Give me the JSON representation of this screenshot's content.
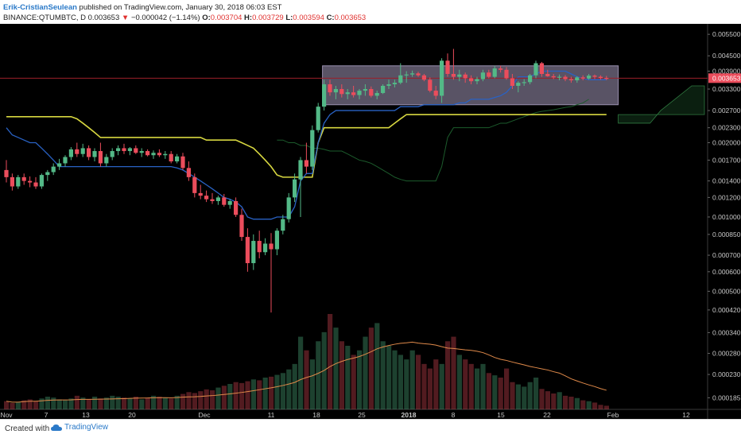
{
  "header": {
    "author": "Erik-CristianSeulean",
    "published_text": " published on TradingView.com, January 30, 2018 06:03 EST",
    "symbol": "BINANCE:QTUMBTC, D",
    "last": "0.003653",
    "change_arrow": "▼",
    "change": "−0.000042 (−1.14%)",
    "o_label": "O:",
    "o": "0.003704",
    "h_label": "H:",
    "h": "0.003729",
    "l_label": "L:",
    "l": "0.003594",
    "c_label": "C:",
    "c": "0.003653"
  },
  "footer": {
    "created_with": "Created with",
    "brand": "TradingView",
    "brand_icon": "tradingview-cloud-icon"
  },
  "colors": {
    "background": "#000000",
    "up": "#53b987",
    "down": "#eb4d5c",
    "conversion_line": "#2962c4",
    "base_line": "#d7d740",
    "lagging_span": "#1c5b2c",
    "volume_ma": "#e08a4a",
    "highlight_box": "#c5b7e0",
    "price_line": "#9b1f2a",
    "axis_text": "#c8c8c8",
    "price_label_bg": "#eb4d5c"
  },
  "chart_data": {
    "type": "candlestick",
    "y_scale": "log",
    "ylim": [
      0.00016,
      0.0058
    ],
    "price_axis_ticks": [
      "0.005500",
      "0.004500",
      "0.003900",
      "0.003300",
      "0.002700",
      "0.002300",
      "0.002000",
      "0.001700",
      "0.001400",
      "0.001200",
      "0.001000",
      "0.000850",
      "0.000700",
      "0.000600",
      "0.000500",
      "0.000420",
      "0.000340",
      "0.000280",
      "0.000230",
      "0.000185"
    ],
    "x_axis_ticks": [
      "Nov",
      "7",
      "13",
      "20",
      "Dec",
      "11",
      "18",
      "25",
      "2018",
      "8",
      "15",
      "22",
      "Feb",
      "12"
    ],
    "current_price_label": "0.003653",
    "candles": [
      {
        "o": 0.00155,
        "h": 0.0017,
        "l": 0.00138,
        "c": 0.00145
      },
      {
        "o": 0.00145,
        "h": 0.0015,
        "l": 0.00128,
        "c": 0.00133
      },
      {
        "o": 0.00133,
        "h": 0.00148,
        "l": 0.0013,
        "c": 0.00145
      },
      {
        "o": 0.00145,
        "h": 0.0015,
        "l": 0.00135,
        "c": 0.0014
      },
      {
        "o": 0.0014,
        "h": 0.00146,
        "l": 0.00132,
        "c": 0.00138
      },
      {
        "o": 0.00138,
        "h": 0.00145,
        "l": 0.0013,
        "c": 0.00133
      },
      {
        "o": 0.00133,
        "h": 0.0015,
        "l": 0.0013,
        "c": 0.00148
      },
      {
        "o": 0.00148,
        "h": 0.00155,
        "l": 0.0014,
        "c": 0.00152
      },
      {
        "o": 0.00152,
        "h": 0.00165,
        "l": 0.00148,
        "c": 0.0016
      },
      {
        "o": 0.0016,
        "h": 0.00172,
        "l": 0.00155,
        "c": 0.00165
      },
      {
        "o": 0.00165,
        "h": 0.00178,
        "l": 0.0016,
        "c": 0.00175
      },
      {
        "o": 0.00175,
        "h": 0.00192,
        "l": 0.0017,
        "c": 0.00188
      },
      {
        "o": 0.00188,
        "h": 0.002,
        "l": 0.00175,
        "c": 0.0018
      },
      {
        "o": 0.0018,
        "h": 0.00198,
        "l": 0.00175,
        "c": 0.0019
      },
      {
        "o": 0.0019,
        "h": 0.00195,
        "l": 0.0017,
        "c": 0.00175
      },
      {
        "o": 0.00175,
        "h": 0.0019,
        "l": 0.00168,
        "c": 0.00185
      },
      {
        "o": 0.00185,
        "h": 0.002,
        "l": 0.0016,
        "c": 0.00165
      },
      {
        "o": 0.00165,
        "h": 0.0018,
        "l": 0.0016,
        "c": 0.00175
      },
      {
        "o": 0.00175,
        "h": 0.0019,
        "l": 0.0017,
        "c": 0.00185
      },
      {
        "o": 0.00185,
        "h": 0.00195,
        "l": 0.00178,
        "c": 0.0019
      },
      {
        "o": 0.0019,
        "h": 0.00198,
        "l": 0.0018,
        "c": 0.00185
      },
      {
        "o": 0.00185,
        "h": 0.00192,
        "l": 0.00178,
        "c": 0.0019
      },
      {
        "o": 0.0019,
        "h": 0.00195,
        "l": 0.0018,
        "c": 0.00182
      },
      {
        "o": 0.00182,
        "h": 0.0019,
        "l": 0.00175,
        "c": 0.00185
      },
      {
        "o": 0.00185,
        "h": 0.00188,
        "l": 0.00176,
        "c": 0.00178
      },
      {
        "o": 0.00178,
        "h": 0.00186,
        "l": 0.00172,
        "c": 0.00182
      },
      {
        "o": 0.00182,
        "h": 0.00188,
        "l": 0.00175,
        "c": 0.00178
      },
      {
        "o": 0.00178,
        "h": 0.00185,
        "l": 0.00172,
        "c": 0.0018
      },
      {
        "o": 0.0018,
        "h": 0.00185,
        "l": 0.00165,
        "c": 0.00168
      },
      {
        "o": 0.00168,
        "h": 0.0018,
        "l": 0.00165,
        "c": 0.00176
      },
      {
        "o": 0.00176,
        "h": 0.00182,
        "l": 0.00155,
        "c": 0.00158
      },
      {
        "o": 0.00158,
        "h": 0.00168,
        "l": 0.0014,
        "c": 0.00145
      },
      {
        "o": 0.00145,
        "h": 0.0015,
        "l": 0.0012,
        "c": 0.00125
      },
      {
        "o": 0.00125,
        "h": 0.00135,
        "l": 0.00118,
        "c": 0.00122
      },
      {
        "o": 0.00122,
        "h": 0.00128,
        "l": 0.00115,
        "c": 0.00118
      },
      {
        "o": 0.00118,
        "h": 0.00125,
        "l": 0.00113,
        "c": 0.00116
      },
      {
        "o": 0.00116,
        "h": 0.00122,
        "l": 0.00112,
        "c": 0.0012
      },
      {
        "o": 0.0012,
        "h": 0.00124,
        "l": 0.0011,
        "c": 0.00112
      },
      {
        "o": 0.00112,
        "h": 0.00118,
        "l": 0.00108,
        "c": 0.00116
      },
      {
        "o": 0.00116,
        "h": 0.0012,
        "l": 0.001,
        "c": 0.00102
      },
      {
        "o": 0.00102,
        "h": 0.00108,
        "l": 0.0008,
        "c": 0.00083
      },
      {
        "o": 0.00083,
        "h": 0.0009,
        "l": 0.0006,
        "c": 0.00065
      },
      {
        "o": 0.00065,
        "h": 0.00085,
        "l": 0.00061,
        "c": 0.0008
      },
      {
        "o": 0.0008,
        "h": 0.00088,
        "l": 0.00068,
        "c": 0.00072
      },
      {
        "o": 0.00072,
        "h": 0.00082,
        "l": 0.0007,
        "c": 0.00078
      },
      {
        "o": 0.00078,
        "h": 0.00086,
        "l": 0.00041,
        "c": 0.00074
      },
      {
        "o": 0.00074,
        "h": 0.0009,
        "l": 0.0007,
        "c": 0.00088
      },
      {
        "o": 0.00088,
        "h": 0.00102,
        "l": 0.00085,
        "c": 0.00098
      },
      {
        "o": 0.00098,
        "h": 0.00125,
        "l": 0.00095,
        "c": 0.0012
      },
      {
        "o": 0.0012,
        "h": 0.0015,
        "l": 0.00115,
        "c": 0.00142
      },
      {
        "o": 0.00142,
        "h": 0.00175,
        "l": 0.001,
        "c": 0.0017
      },
      {
        "o": 0.0017,
        "h": 0.002,
        "l": 0.0015,
        "c": 0.0016
      },
      {
        "o": 0.0016,
        "h": 0.00235,
        "l": 0.00155,
        "c": 0.00225
      },
      {
        "o": 0.00225,
        "h": 0.0029,
        "l": 0.0022,
        "c": 0.0028
      },
      {
        "o": 0.0028,
        "h": 0.0036,
        "l": 0.0027,
        "c": 0.00345
      },
      {
        "o": 0.00345,
        "h": 0.0036,
        "l": 0.0031,
        "c": 0.0032
      },
      {
        "o": 0.0032,
        "h": 0.0034,
        "l": 0.003,
        "c": 0.0033
      },
      {
        "o": 0.0033,
        "h": 0.00345,
        "l": 0.00305,
        "c": 0.00315
      },
      {
        "o": 0.00315,
        "h": 0.0033,
        "l": 0.003,
        "c": 0.0032
      },
      {
        "o": 0.0032,
        "h": 0.0034,
        "l": 0.00305,
        "c": 0.00312
      },
      {
        "o": 0.00312,
        "h": 0.0033,
        "l": 0.003,
        "c": 0.00325
      },
      {
        "o": 0.00325,
        "h": 0.00345,
        "l": 0.0031,
        "c": 0.0033
      },
      {
        "o": 0.0033,
        "h": 0.00338,
        "l": 0.00305,
        "c": 0.0031
      },
      {
        "o": 0.0031,
        "h": 0.00325,
        "l": 0.003,
        "c": 0.00318
      },
      {
        "o": 0.00318,
        "h": 0.00345,
        "l": 0.00315,
        "c": 0.0034
      },
      {
        "o": 0.0034,
        "h": 0.0036,
        "l": 0.0033,
        "c": 0.00345
      },
      {
        "o": 0.00345,
        "h": 0.0036,
        "l": 0.00335,
        "c": 0.0035
      },
      {
        "o": 0.0035,
        "h": 0.0042,
        "l": 0.00345,
        "c": 0.00375
      },
      {
        "o": 0.00375,
        "h": 0.0039,
        "l": 0.0035,
        "c": 0.00378
      },
      {
        "o": 0.00378,
        "h": 0.00392,
        "l": 0.0037,
        "c": 0.00382
      },
      {
        "o": 0.00382,
        "h": 0.00388,
        "l": 0.0037,
        "c": 0.00375
      },
      {
        "o": 0.00375,
        "h": 0.0038,
        "l": 0.00355,
        "c": 0.0036
      },
      {
        "o": 0.0036,
        "h": 0.00368,
        "l": 0.0032,
        "c": 0.00325
      },
      {
        "o": 0.00325,
        "h": 0.0034,
        "l": 0.003,
        "c": 0.0031
      },
      {
        "o": 0.0031,
        "h": 0.0044,
        "l": 0.0029,
        "c": 0.0043
      },
      {
        "o": 0.0043,
        "h": 0.0046,
        "l": 0.0037,
        "c": 0.0038
      },
      {
        "o": 0.0038,
        "h": 0.0048,
        "l": 0.0036,
        "c": 0.0037
      },
      {
        "o": 0.0037,
        "h": 0.00395,
        "l": 0.00355,
        "c": 0.00378
      },
      {
        "o": 0.00378,
        "h": 0.00385,
        "l": 0.0035,
        "c": 0.00365
      },
      {
        "o": 0.00365,
        "h": 0.00375,
        "l": 0.00345,
        "c": 0.00355
      },
      {
        "o": 0.00355,
        "h": 0.0037,
        "l": 0.00345,
        "c": 0.00362
      },
      {
        "o": 0.00362,
        "h": 0.00395,
        "l": 0.00355,
        "c": 0.00385
      },
      {
        "o": 0.00385,
        "h": 0.00395,
        "l": 0.00365,
        "c": 0.0037
      },
      {
        "o": 0.0037,
        "h": 0.0041,
        "l": 0.00365,
        "c": 0.004
      },
      {
        "o": 0.004,
        "h": 0.0041,
        "l": 0.00385,
        "c": 0.00395
      },
      {
        "o": 0.00395,
        "h": 0.00405,
        "l": 0.0036,
        "c": 0.00365
      },
      {
        "o": 0.00365,
        "h": 0.0038,
        "l": 0.0033,
        "c": 0.0034
      },
      {
        "o": 0.0034,
        "h": 0.00355,
        "l": 0.0032,
        "c": 0.0035
      },
      {
        "o": 0.0035,
        "h": 0.00362,
        "l": 0.0034,
        "c": 0.00352
      },
      {
        "o": 0.00352,
        "h": 0.0038,
        "l": 0.00345,
        "c": 0.00375
      },
      {
        "o": 0.00375,
        "h": 0.0043,
        "l": 0.00365,
        "c": 0.0042
      },
      {
        "o": 0.0042,
        "h": 0.00425,
        "l": 0.0037,
        "c": 0.0038
      },
      {
        "o": 0.0038,
        "h": 0.00395,
        "l": 0.0037,
        "c": 0.00372
      },
      {
        "o": 0.00372,
        "h": 0.0038,
        "l": 0.00362,
        "c": 0.00368
      },
      {
        "o": 0.00368,
        "h": 0.00378,
        "l": 0.00358,
        "c": 0.0037
      },
      {
        "o": 0.0037,
        "h": 0.00376,
        "l": 0.00355,
        "c": 0.00362
      },
      {
        "o": 0.00362,
        "h": 0.0037,
        "l": 0.0035,
        "c": 0.00358
      },
      {
        "o": 0.00358,
        "h": 0.00372,
        "l": 0.0035,
        "c": 0.00368
      },
      {
        "o": 0.00368,
        "h": 0.00375,
        "l": 0.00358,
        "c": 0.00364
      },
      {
        "o": 0.00364,
        "h": 0.0038,
        "l": 0.0036,
        "c": 0.00374
      },
      {
        "o": 0.00374,
        "h": 0.00378,
        "l": 0.00362,
        "c": 0.0037
      },
      {
        "o": 0.0037,
        "h": 0.00375,
        "l": 0.0036,
        "c": 0.00366
      },
      {
        "o": 0.00366,
        "h": 0.00373,
        "l": 0.00359,
        "c": 0.003653
      }
    ],
    "volume": [
      18,
      14,
      16,
      20,
      22,
      18,
      24,
      28,
      26,
      22,
      20,
      24,
      30,
      26,
      22,
      28,
      24,
      26,
      30,
      28,
      26,
      24,
      28,
      22,
      26,
      30,
      28,
      26,
      24,
      30,
      34,
      38,
      36,
      40,
      44,
      42,
      48,
      52,
      56,
      60,
      58,
      62,
      66,
      64,
      70,
      72,
      76,
      80,
      88,
      100,
      160,
      130,
      110,
      150,
      170,
      210,
      180,
      150,
      140,
      120,
      130,
      160,
      180,
      190,
      150,
      140,
      130,
      120,
      110,
      130,
      120,
      100,
      90,
      110,
      100,
      150,
      160,
      120,
      110,
      100,
      90,
      100,
      80,
      75,
      70,
      90,
      60,
      55,
      50,
      60,
      70,
      45,
      40,
      35,
      38,
      30,
      28,
      25,
      20,
      18,
      15,
      10,
      8
    ],
    "volume_max": 210,
    "conversion_line": [
      0.0023,
      0.00215,
      0.0021,
      0.00205,
      0.002,
      0.002,
      0.0019,
      0.0018,
      0.0017,
      0.0016,
      0.0016,
      0.0016,
      0.0016,
      0.0016,
      0.0016,
      0.0016,
      0.0016,
      0.0016,
      0.0016,
      0.0016,
      0.0016,
      0.0016,
      0.0016,
      0.0016,
      0.0016,
      0.0016,
      0.0016,
      0.0016,
      0.0016,
      0.00158,
      0.00155,
      0.0015,
      0.00145,
      0.0014,
      0.00135,
      0.0013,
      0.00125,
      0.0012,
      0.00118,
      0.00115,
      0.0011,
      0.001,
      0.00098,
      0.00098,
      0.00098,
      0.00098,
      0.001,
      0.001,
      0.001,
      0.0011,
      0.0014,
      0.0015,
      0.0015,
      0.002,
      0.0024,
      0.0026,
      0.0027,
      0.0027,
      0.0027,
      0.0027,
      0.0027,
      0.0027,
      0.0027,
      0.0027,
      0.0027,
      0.0027,
      0.0027,
      0.0028,
      0.0028,
      0.0028,
      0.0028,
      0.00285,
      0.00285,
      0.00285,
      0.00285,
      0.00285,
      0.00285,
      0.0029,
      0.0029,
      0.003,
      0.003,
      0.003,
      0.003,
      0.00305,
      0.0031,
      0.0032,
      0.0034,
      0.0037,
      0.0037,
      0.0037,
      0.0038,
      0.0039,
      0.0039,
      0.0039,
      0.0039,
      0.0039,
      0.0038,
      0.0037,
      0.00365,
      0.0036,
      0.0036,
      0.0036,
      0.0036
    ],
    "base_line": [
      0.00255,
      0.00255,
      0.00255,
      0.00255,
      0.00255,
      0.00255,
      0.00255,
      0.00255,
      0.00255,
      0.00255,
      0.00255,
      0.00255,
      0.0025,
      0.0024,
      0.0023,
      0.0022,
      0.0021,
      0.0021,
      0.0021,
      0.0021,
      0.0021,
      0.0021,
      0.0021,
      0.0021,
      0.0021,
      0.0021,
      0.0021,
      0.0021,
      0.0021,
      0.0021,
      0.0021,
      0.0021,
      0.0021,
      0.0021,
      0.00205,
      0.00205,
      0.00205,
      0.00205,
      0.00205,
      0.00205,
      0.002,
      0.00195,
      0.0019,
      0.0018,
      0.0017,
      0.0016,
      0.00148,
      0.00145,
      0.00145,
      0.00145,
      0.00145,
      0.00145,
      0.00145,
      0.002,
      0.0023,
      0.0023,
      0.0023,
      0.0023,
      0.0023,
      0.0023,
      0.0023,
      0.0023,
      0.0023,
      0.0023,
      0.0023,
      0.0023,
      0.0024,
      0.0025,
      0.0026,
      0.0026,
      0.0026,
      0.0026,
      0.0026,
      0.0026,
      0.0026,
      0.0026,
      0.0026,
      0.0026,
      0.0026,
      0.0026,
      0.0026,
      0.0026,
      0.0026,
      0.0026,
      0.0026,
      0.0026,
      0.0026,
      0.0026,
      0.0026,
      0.0026,
      0.0026,
      0.0026,
      0.0026,
      0.0026,
      0.0026,
      0.0026,
      0.0026,
      0.0026,
      0.0026,
      0.0026,
      0.0026,
      0.0026,
      0.0026
    ],
    "lagging_span": [
      0.00205,
      0.00205,
      0.002,
      0.002,
      0.00195,
      0.00195,
      0.0019,
      0.0019,
      0.00188,
      0.00185,
      0.00185,
      0.00185,
      0.0018,
      0.00175,
      0.0017,
      0.00168,
      0.00165,
      0.0016,
      0.00155,
      0.0015,
      0.00145,
      0.00142,
      0.0014,
      0.0014,
      0.0014,
      0.0014,
      0.0014,
      0.0014,
      0.0016,
      0.0021,
      0.0023,
      0.0023,
      0.0023,
      0.0023,
      0.0023,
      0.0023,
      0.0023,
      0.00235,
      0.0024,
      0.0024,
      0.00245,
      0.0025,
      0.00255,
      0.0026,
      0.00265,
      0.00268,
      0.0027,
      0.00272,
      0.00275,
      0.00278,
      0.0028,
      0.00285,
      0.0029,
      0.003
    ],
    "box_range": {
      "top": 0.0041,
      "bottom": 0.00285
    },
    "price_line": 0.003653
  }
}
